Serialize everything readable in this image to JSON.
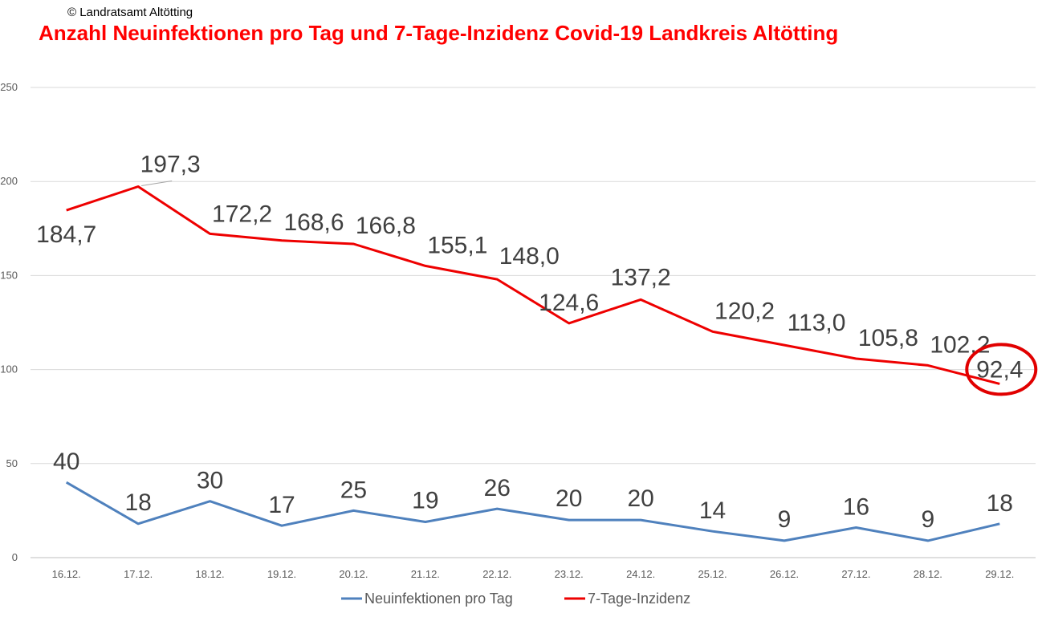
{
  "copyright": "© Landratsamt Altötting",
  "colors": {
    "title": "#ff0000",
    "neu": "#4f81bd",
    "inzidenz": "#ee0000",
    "highlight": "#e10000"
  },
  "chart_data": {
    "type": "line",
    "title": "Anzahl Neuinfektionen pro Tag und 7-Tage-Inzidenz Covid-19 Landkreis Altötting",
    "xlabel": "",
    "ylabel": "",
    "ylim": [
      0,
      250
    ],
    "yticks": [
      0,
      50,
      100,
      150,
      200,
      250
    ],
    "grid": true,
    "legend_position": "bottom",
    "categories": [
      "16.12.",
      "17.12.",
      "18.12.",
      "19.12.",
      "20.12.",
      "21.12.",
      "22.12.",
      "23.12.",
      "24.12.",
      "25.12.",
      "26.12.",
      "27.12.",
      "28.12.",
      "29.12."
    ],
    "series": [
      {
        "name": "Neuinfektionen pro Tag",
        "values": [
          40,
          18,
          30,
          17,
          25,
          19,
          26,
          20,
          20,
          14,
          9,
          16,
          9,
          18
        ],
        "labels": [
          "40",
          "18",
          "30",
          "17",
          "25",
          "19",
          "26",
          "20",
          "20",
          "14",
          "9",
          "16",
          "9",
          "18"
        ]
      },
      {
        "name": "7-Tage-Inzidenz",
        "values": [
          184.7,
          197.3,
          172.2,
          168.6,
          166.8,
          155.1,
          148.0,
          124.6,
          137.2,
          120.2,
          113.0,
          105.8,
          102.2,
          92.4
        ],
        "labels": [
          "184,7",
          "197,3",
          "172,2",
          "168,6",
          "166,8",
          "155,1",
          "148,0",
          "124,6",
          "137,2",
          "120,2",
          "113,0",
          "105,8",
          "102,2",
          "92,4"
        ]
      }
    ],
    "annotations": [
      "red circle around last value 92,4"
    ]
  }
}
